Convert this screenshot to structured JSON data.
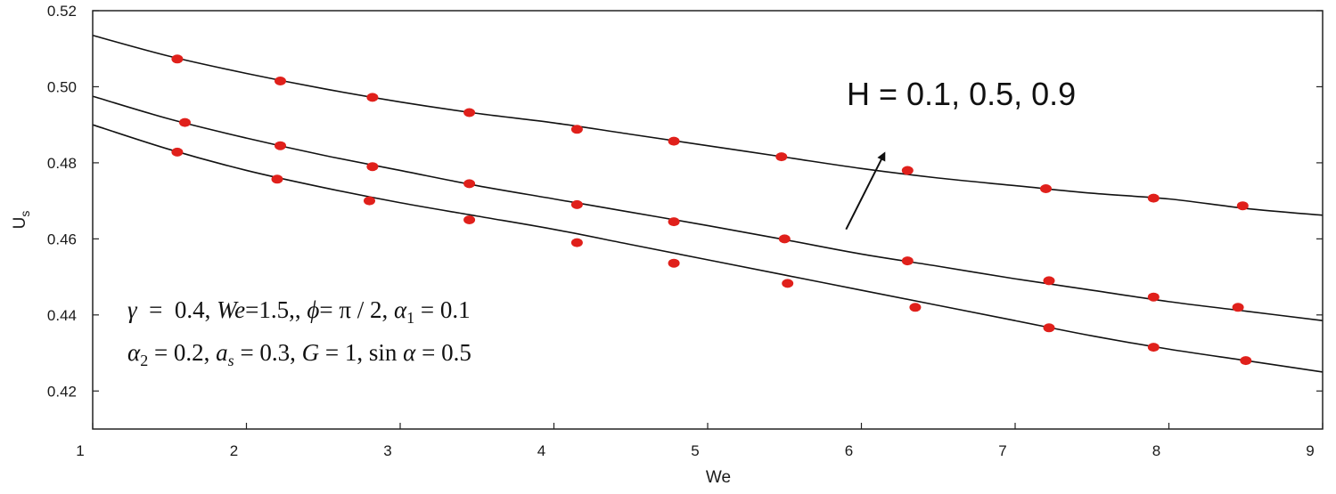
{
  "chart_data": {
    "type": "line",
    "title": "",
    "xlabel": "We",
    "ylabel": "U",
    "ylabel_sub": "s",
    "xlim": [
      1,
      9
    ],
    "ylim": [
      0.41,
      0.52
    ],
    "x_ticks": [
      1,
      2,
      3,
      4,
      5,
      6,
      7,
      8,
      9
    ],
    "y_ticks": [
      0.42,
      0.44,
      0.46,
      0.48,
      0.5,
      0.52
    ],
    "y_tick_labels": [
      "0.42",
      "0.44",
      "0.46",
      "0.48",
      "0.50",
      "0.52"
    ],
    "grid": false,
    "line_color": "#111111",
    "marker_color": "#e0201b",
    "series": [
      {
        "curve": [
          [
            1.0,
            0.49
          ],
          [
            1.5,
            0.4835
          ],
          [
            2.0,
            0.478
          ],
          [
            2.5,
            0.4735
          ],
          [
            3.0,
            0.4695
          ],
          [
            3.5,
            0.466
          ],
          [
            4.0,
            0.4625
          ],
          [
            4.5,
            0.4585
          ],
          [
            5.0,
            0.4545
          ],
          [
            5.5,
            0.4505
          ],
          [
            6.0,
            0.4465
          ],
          [
            6.5,
            0.4425
          ],
          [
            7.0,
            0.4385
          ],
          [
            7.5,
            0.4345
          ],
          [
            8.0,
            0.431
          ],
          [
            8.5,
            0.428
          ],
          [
            9.0,
            0.425
          ]
        ],
        "markers": [
          [
            1.55,
            0.4828
          ],
          [
            2.2,
            0.4757
          ],
          [
            2.8,
            0.47
          ],
          [
            3.45,
            0.465
          ],
          [
            4.15,
            0.459
          ],
          [
            4.78,
            0.4536
          ],
          [
            5.52,
            0.4483
          ],
          [
            6.35,
            0.442
          ],
          [
            7.22,
            0.4366
          ],
          [
            7.9,
            0.4315
          ],
          [
            8.5,
            0.428
          ]
        ]
      },
      {
        "curve": [
          [
            1.0,
            0.4975
          ],
          [
            1.5,
            0.4915
          ],
          [
            2.0,
            0.4865
          ],
          [
            2.5,
            0.482
          ],
          [
            3.0,
            0.478
          ],
          [
            3.5,
            0.474
          ],
          [
            4.0,
            0.4705
          ],
          [
            4.5,
            0.467
          ],
          [
            5.0,
            0.4635
          ],
          [
            5.5,
            0.4598
          ],
          [
            6.0,
            0.456
          ],
          [
            6.5,
            0.4528
          ],
          [
            7.0,
            0.4495
          ],
          [
            7.5,
            0.4465
          ],
          [
            8.0,
            0.4435
          ],
          [
            8.5,
            0.441
          ],
          [
            9.0,
            0.4385
          ]
        ],
        "markers": [
          [
            1.6,
            0.4906
          ],
          [
            2.22,
            0.4845
          ],
          [
            2.82,
            0.479
          ],
          [
            3.45,
            0.4745
          ],
          [
            4.15,
            0.469
          ],
          [
            4.78,
            0.4645
          ],
          [
            5.5,
            0.46
          ],
          [
            6.3,
            0.4542
          ],
          [
            7.22,
            0.449
          ],
          [
            7.9,
            0.4447
          ],
          [
            8.45,
            0.442
          ]
        ]
      },
      {
        "curve": [
          [
            1.0,
            0.5135
          ],
          [
            1.5,
            0.508
          ],
          [
            2.0,
            0.5035
          ],
          [
            2.5,
            0.4995
          ],
          [
            3.0,
            0.496
          ],
          [
            3.5,
            0.493
          ],
          [
            4.0,
            0.4905
          ],
          [
            4.5,
            0.4875
          ],
          [
            5.0,
            0.4845
          ],
          [
            5.5,
            0.4815
          ],
          [
            6.0,
            0.4785
          ],
          [
            6.5,
            0.476
          ],
          [
            7.0,
            0.474
          ],
          [
            7.5,
            0.472
          ],
          [
            8.0,
            0.4705
          ],
          [
            8.5,
            0.468
          ],
          [
            9.0,
            0.4662
          ]
        ],
        "markers": [
          [
            1.55,
            0.5073
          ],
          [
            2.22,
            0.5015
          ],
          [
            2.82,
            0.4972
          ],
          [
            3.45,
            0.4932
          ],
          [
            4.15,
            0.4888
          ],
          [
            4.78,
            0.4857
          ],
          [
            5.48,
            0.4816
          ],
          [
            6.3,
            0.478
          ],
          [
            7.2,
            0.4732
          ],
          [
            7.9,
            0.4707
          ],
          [
            8.48,
            0.4687
          ]
        ]
      }
    ],
    "annotation": {
      "text": "H = 0.1, 0.5, 0.9",
      "arrow_from": [
        5.9,
        0.4625
      ],
      "arrow_to": [
        6.15,
        0.4825
      ]
    },
    "params": {
      "line1": {
        "gamma_sym": "γ",
        "gamma_val": "  =  0.4,",
        "we_sym": "We",
        "we_val": "=1.5,,",
        "phi_sym": "ϕ",
        "phi_val": "= π / 2,",
        "alpha_sym": "α",
        "alpha1_sub": "1",
        "alpha1_val": " = 0.1"
      },
      "line2": {
        "alpha_sym": "α",
        "alpha2_sub": "2",
        "alpha2_val": " = 0.2,",
        "a_sym": "a",
        "as_sub": "s",
        "as_val": " = 0.3,",
        "g_sym": "G",
        "g_val": " = 1, sin ",
        "alpha_sym2": "α",
        "alpha_val": " = 0.5"
      }
    }
  }
}
